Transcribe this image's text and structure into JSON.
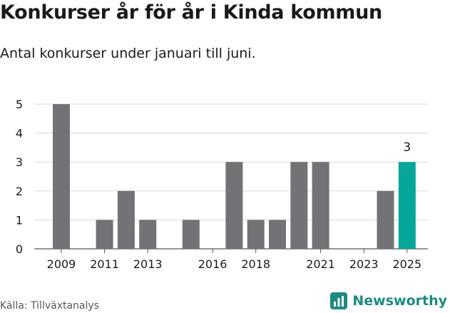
{
  "header": {
    "title": "Konkurser år för år i Kinda kommun",
    "subtitle": "Antal konkurser under januari till juni."
  },
  "footer": {
    "source": "Källa: Tillväxtanalys",
    "brand": "Newsworthy"
  },
  "colors": {
    "bar": "#737277",
    "highlight": "#06a69b",
    "grid": "#d9d9d9",
    "brand": "#1f8a82"
  },
  "chart_data": {
    "type": "bar",
    "categories": [
      2009,
      2010,
      2011,
      2012,
      2013,
      2014,
      2015,
      2016,
      2017,
      2018,
      2019,
      2020,
      2021,
      2022,
      2023,
      2024,
      2025
    ],
    "values": [
      5,
      0,
      1,
      2,
      1,
      0,
      1,
      0,
      3,
      1,
      1,
      3,
      3,
      0,
      0,
      2,
      3
    ],
    "x_tick_labels": [
      "2009",
      "2011",
      "2013",
      "2016",
      "2018",
      "2021",
      "2023",
      "2025"
    ],
    "y_ticks": [
      0,
      1,
      2,
      3,
      4,
      5
    ],
    "ylim": [
      0,
      5
    ],
    "highlight_category": 2025,
    "data_labels": [
      {
        "category": 2025,
        "label": "3"
      }
    ],
    "grid": true,
    "xlabel": "",
    "ylabel": ""
  }
}
